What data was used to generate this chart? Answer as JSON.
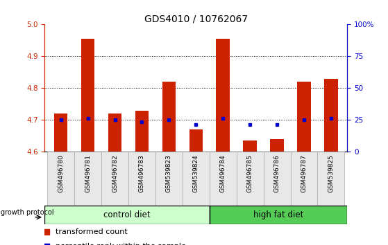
{
  "title": "GDS4010 / 10762067",
  "samples": [
    "GSM496780",
    "GSM496781",
    "GSM496782",
    "GSM496783",
    "GSM539823",
    "GSM539824",
    "GSM496784",
    "GSM496785",
    "GSM496786",
    "GSM496787",
    "GSM539825"
  ],
  "red_values": [
    4.72,
    4.955,
    4.72,
    4.73,
    4.82,
    4.67,
    4.955,
    4.635,
    4.64,
    4.82,
    4.83
  ],
  "blue_values": [
    4.7,
    4.705,
    4.7,
    4.695,
    4.7,
    4.685,
    4.705,
    4.685,
    4.685,
    4.7,
    4.705
  ],
  "ylim_left": [
    4.6,
    5.0
  ],
  "ylim_right": [
    0,
    100
  ],
  "yticks_left": [
    4.6,
    4.7,
    4.8,
    4.9,
    5.0
  ],
  "yticks_right": [
    0,
    25,
    50,
    75,
    100
  ],
  "ytick_right_labels": [
    "0",
    "25",
    "50",
    "75",
    "100%"
  ],
  "hlines": [
    4.7,
    4.8,
    4.9
  ],
  "control_n": 6,
  "high_fat_n": 5,
  "control_color": "#ccffcc",
  "high_fat_color": "#55cc55",
  "bar_color": "#cc2200",
  "dot_color": "#0000cc",
  "bar_width": 0.5,
  "left_axis_color": "#cc2200",
  "right_axis_color": "#0000cc",
  "bg_color": "#e8e8e8"
}
